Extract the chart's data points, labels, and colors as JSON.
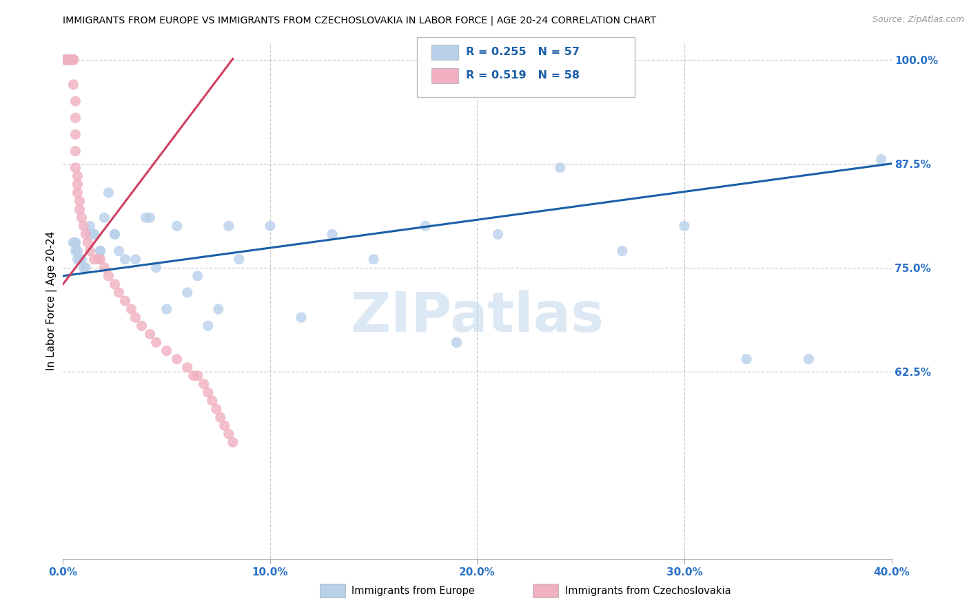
{
  "title": "IMMIGRANTS FROM EUROPE VS IMMIGRANTS FROM CZECHOSLOVAKIA IN LABOR FORCE | AGE 20-24 CORRELATION CHART",
  "source": "Source: ZipAtlas.com",
  "ylabel": "In Labor Force | Age 20-24",
  "watermark": "ZIPatlas",
  "legend_blue_label": "Immigrants from Europe",
  "legend_pink_label": "Immigrants from Czechoslovakia",
  "xlim": [
    0.0,
    0.4
  ],
  "ylim": [
    0.4,
    1.02
  ],
  "yticks": [
    0.625,
    0.75,
    0.875,
    1.0
  ],
  "ytick_labels": [
    "62.5%",
    "75.0%",
    "87.5%",
    "100.0%"
  ],
  "xtick_vals": [
    0.0,
    0.1,
    0.2,
    0.3,
    0.4
  ],
  "xtick_labels": [
    "0.0%",
    "10.0%",
    "20.0%",
    "30.0%",
    "40.0%"
  ],
  "blue_fill": "#b8d0ea",
  "blue_line": "#1a5fa8",
  "pink_fill": "#f0b0c0",
  "pink_line": "#d04060",
  "legend_text_color": "#1a5fa8",
  "tick_color": "#2b72c8",
  "blue_scatter_x": [
    0.002,
    0.002,
    0.003,
    0.003,
    0.003,
    0.004,
    0.004,
    0.004,
    0.005,
    0.005,
    0.005,
    0.006,
    0.006,
    0.006,
    0.007,
    0.007,
    0.008,
    0.009,
    0.01,
    0.011,
    0.013,
    0.013,
    0.015,
    0.015,
    0.018,
    0.018,
    0.02,
    0.022,
    0.025,
    0.025,
    0.027,
    0.03,
    0.035,
    0.04,
    0.042,
    0.045,
    0.05,
    0.055,
    0.06,
    0.065,
    0.07,
    0.075,
    0.08,
    0.085,
    0.1,
    0.115,
    0.13,
    0.15,
    0.175,
    0.19,
    0.21,
    0.24,
    0.27,
    0.3,
    0.33,
    0.36,
    0.395
  ],
  "blue_scatter_y": [
    1.0,
    1.0,
    1.0,
    1.0,
    1.0,
    1.0,
    1.0,
    1.0,
    1.0,
    1.0,
    0.78,
    0.78,
    0.78,
    0.77,
    0.76,
    0.77,
    0.76,
    0.76,
    0.75,
    0.75,
    0.79,
    0.8,
    0.79,
    0.79,
    0.77,
    0.77,
    0.81,
    0.84,
    0.79,
    0.79,
    0.77,
    0.76,
    0.76,
    0.81,
    0.81,
    0.75,
    0.7,
    0.8,
    0.72,
    0.74,
    0.68,
    0.7,
    0.8,
    0.76,
    0.8,
    0.69,
    0.79,
    0.76,
    0.8,
    0.66,
    0.79,
    0.87,
    0.77,
    0.8,
    0.64,
    0.64,
    0.88
  ],
  "pink_scatter_x": [
    0.001,
    0.001,
    0.002,
    0.002,
    0.002,
    0.002,
    0.003,
    0.003,
    0.003,
    0.004,
    0.004,
    0.004,
    0.004,
    0.005,
    0.005,
    0.005,
    0.005,
    0.006,
    0.006,
    0.006,
    0.006,
    0.006,
    0.007,
    0.007,
    0.007,
    0.008,
    0.008,
    0.009,
    0.01,
    0.011,
    0.012,
    0.013,
    0.015,
    0.017,
    0.018,
    0.02,
    0.022,
    0.025,
    0.027,
    0.03,
    0.033,
    0.035,
    0.038,
    0.042,
    0.045,
    0.05,
    0.055,
    0.06,
    0.063,
    0.065,
    0.068,
    0.07,
    0.072,
    0.074,
    0.076,
    0.078,
    0.08,
    0.082
  ],
  "pink_scatter_y": [
    1.0,
    1.0,
    1.0,
    1.0,
    1.0,
    1.0,
    1.0,
    1.0,
    1.0,
    1.0,
    1.0,
    1.0,
    1.0,
    1.0,
    1.0,
    1.0,
    0.97,
    0.95,
    0.93,
    0.91,
    0.89,
    0.87,
    0.86,
    0.85,
    0.84,
    0.83,
    0.82,
    0.81,
    0.8,
    0.79,
    0.78,
    0.77,
    0.76,
    0.76,
    0.76,
    0.75,
    0.74,
    0.73,
    0.72,
    0.71,
    0.7,
    0.69,
    0.68,
    0.67,
    0.66,
    0.65,
    0.64,
    0.63,
    0.62,
    0.62,
    0.61,
    0.6,
    0.59,
    0.58,
    0.57,
    0.56,
    0.55,
    0.54
  ],
  "blue_trend_x": [
    0.0,
    0.4
  ],
  "blue_trend_y": [
    0.74,
    0.875
  ],
  "pink_trend_x": [
    0.0,
    0.082
  ],
  "pink_trend_y": [
    0.73,
    1.001
  ]
}
